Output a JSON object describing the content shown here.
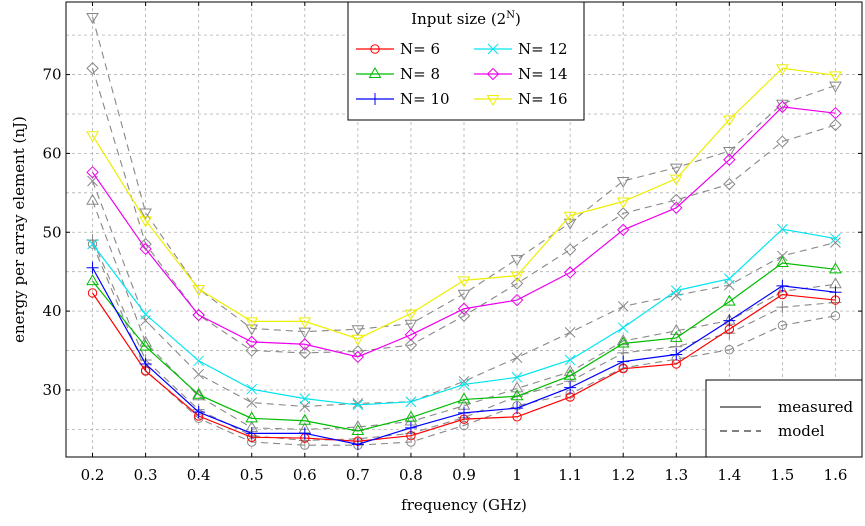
{
  "chart_data": {
    "type": "line",
    "xlabel": "frequency (GHz)",
    "ylabel": "energy per array element (nJ)",
    "x": [
      0.2,
      0.3,
      0.4,
      0.5,
      0.6,
      0.7,
      0.8,
      0.9,
      1.0,
      1.1,
      1.2,
      1.3,
      1.4,
      1.5,
      1.6
    ],
    "x_tick_labels": [
      "0.2",
      "0.3",
      "0.4",
      "0.5",
      "0.6",
      "0.7",
      "0.8",
      "0.9",
      "1",
      "1.1",
      "1.2",
      "1.3",
      "1.4",
      "1.5",
      "1.6"
    ],
    "y_ticks": [
      30,
      40,
      50,
      60,
      70
    ],
    "xlim": [
      0.15,
      1.65
    ],
    "ylim": [
      21.5,
      79.2
    ],
    "grid": true,
    "legend_title": "Input size (2",
    "legend_title_sup": "N",
    "legend_title_close": ")",
    "legend_position": "top-center",
    "style_legend_position": "bottom-right",
    "series": [
      {
        "name": "N= 6",
        "color": "#ff0000",
        "marker": "circle",
        "values": [
          42.3,
          32.4,
          26.7,
          24.0,
          23.9,
          23.5,
          24.2,
          26.3,
          26.6,
          29.1,
          32.7,
          33.3,
          37.7,
          42.1,
          41.4
        ],
        "model_values": [
          48.5,
          32.5,
          26.4,
          23.4,
          23.0,
          23.0,
          23.4,
          25.5,
          28.0,
          29.5,
          32.8,
          33.9,
          35.1,
          38.2,
          39.4
        ]
      },
      {
        "name": "N= 8",
        "color": "#00bb00",
        "marker": "triangle",
        "values": [
          43.8,
          35.5,
          29.4,
          26.4,
          26.1,
          24.8,
          26.5,
          28.8,
          29.2,
          31.8,
          35.9,
          36.6,
          41.2,
          46.1,
          45.3
        ],
        "model_values": [
          54.0,
          36.0,
          29.2,
          25.2,
          25.0,
          25.3,
          26.0,
          28.0,
          30.2,
          32.3,
          36.2,
          37.5,
          38.8,
          42.5,
          43.4
        ]
      },
      {
        "name": "N= 10",
        "color": "#0000ff",
        "marker": "plus",
        "values": [
          45.5,
          33.3,
          27.2,
          24.5,
          24.5,
          23.1,
          25.2,
          27.1,
          27.7,
          30.3,
          33.6,
          34.5,
          38.8,
          43.2,
          42.4
        ],
        "model_values": [
          49.0,
          33.8,
          27.5,
          24.2,
          23.6,
          23.8,
          24.5,
          26.5,
          29.2,
          31.1,
          34.7,
          35.5,
          37.2,
          40.5,
          41.1
        ]
      },
      {
        "name": "N= 12",
        "color": "#00e5ee",
        "marker": "cross",
        "values": [
          48.5,
          39.6,
          33.7,
          30.1,
          28.9,
          28.1,
          28.5,
          30.7,
          31.6,
          33.8,
          37.9,
          42.6,
          44.1,
          50.4,
          49.2
        ],
        "model_values": [
          56.5,
          38.8,
          32.0,
          28.4,
          27.9,
          28.3,
          28.5,
          31.1,
          34.1,
          37.3,
          40.6,
          42.0,
          43.3,
          47.0,
          48.7
        ]
      },
      {
        "name": "N= 14",
        "color": "#ee00ee",
        "marker": "diamond",
        "values": [
          57.6,
          47.9,
          39.5,
          36.1,
          35.8,
          34.2,
          37.0,
          40.3,
          41.4,
          44.9,
          50.3,
          53.1,
          59.2,
          65.9,
          65.1
        ],
        "model_values": [
          70.8,
          48.5,
          39.5,
          35.0,
          34.7,
          34.9,
          35.7,
          39.4,
          43.5,
          47.8,
          52.4,
          54.1,
          56.1,
          61.5,
          63.6
        ]
      },
      {
        "name": "N= 16",
        "color": "#eeee00",
        "marker": "inv-triangle",
        "values": [
          62.3,
          51.5,
          42.8,
          38.7,
          38.7,
          36.5,
          39.7,
          43.9,
          44.5,
          52.1,
          53.9,
          56.8,
          64.3,
          70.8,
          69.9
        ],
        "model_values": [
          77.3,
          52.5,
          42.8,
          37.8,
          37.4,
          37.7,
          38.4,
          42.2,
          46.6,
          51.2,
          56.5,
          58.2,
          60.3,
          66.3,
          68.6
        ]
      }
    ],
    "style_legend": [
      {
        "label": "measured",
        "dash": "solid"
      },
      {
        "label": "model",
        "dash": "dashed"
      }
    ]
  }
}
